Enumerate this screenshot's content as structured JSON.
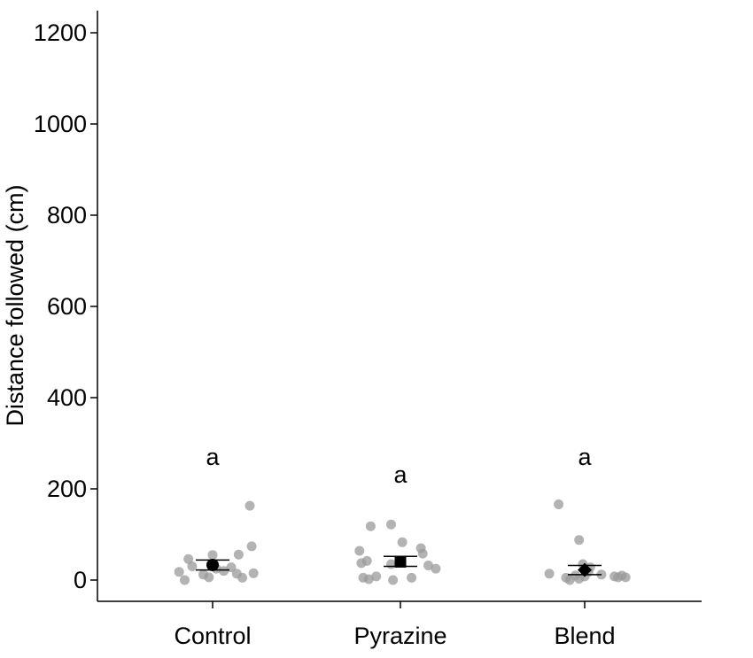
{
  "chart_data": {
    "type": "scatter",
    "title": "",
    "xlabel": "",
    "ylabel": "Distance followed (cm)",
    "ylim": [
      -50,
      1250
    ],
    "yticks": [
      0,
      200,
      400,
      600,
      800,
      1000,
      1200
    ],
    "categories": [
      "Control",
      "Pyrazine",
      "Blend"
    ],
    "grid": false,
    "point_color": "#9a9a9a",
    "mean_color": "#000000",
    "groups": [
      {
        "category": "Control",
        "marker": "circle",
        "mean": 33,
        "error": [
          22,
          44
        ],
        "significance": "a",
        "points": [
          {
            "dx": -0.18,
            "y": 18
          },
          {
            "dx": -0.15,
            "y": 0
          },
          {
            "dx": -0.13,
            "y": 46
          },
          {
            "dx": -0.11,
            "y": 30
          },
          {
            "dx": -0.05,
            "y": 12
          },
          {
            "dx": -0.02,
            "y": 6
          },
          {
            "dx": 0.0,
            "y": 55
          },
          {
            "dx": 0.02,
            "y": 25
          },
          {
            "dx": 0.06,
            "y": 20
          },
          {
            "dx": 0.1,
            "y": 28
          },
          {
            "dx": 0.13,
            "y": 14
          },
          {
            "dx": 0.14,
            "y": 56
          },
          {
            "dx": 0.16,
            "y": 5
          },
          {
            "dx": 0.2,
            "y": 163
          },
          {
            "dx": 0.21,
            "y": 74
          },
          {
            "dx": 0.22,
            "y": 15
          }
        ]
      },
      {
        "category": "Pyrazine",
        "marker": "square",
        "mean": 40,
        "error": [
          30,
          52
        ],
        "significance": "a",
        "points": [
          {
            "dx": -0.22,
            "y": 64
          },
          {
            "dx": -0.21,
            "y": 37
          },
          {
            "dx": -0.2,
            "y": 5
          },
          {
            "dx": -0.18,
            "y": 42
          },
          {
            "dx": -0.17,
            "y": 2
          },
          {
            "dx": -0.16,
            "y": 118
          },
          {
            "dx": -0.13,
            "y": 8
          },
          {
            "dx": -0.04,
            "y": 0
          },
          {
            "dx": -0.05,
            "y": 35
          },
          {
            "dx": -0.05,
            "y": 122
          },
          {
            "dx": 0.01,
            "y": 83
          },
          {
            "dx": 0.06,
            "y": 5
          },
          {
            "dx": 0.11,
            "y": 70
          },
          {
            "dx": 0.12,
            "y": 58
          },
          {
            "dx": 0.15,
            "y": 32
          },
          {
            "dx": 0.19,
            "y": 25
          }
        ]
      },
      {
        "category": "Blend",
        "marker": "diamond",
        "mean": 22,
        "error": [
          12,
          32
        ],
        "significance": "a",
        "points": [
          {
            "dx": -0.19,
            "y": 14
          },
          {
            "dx": -0.14,
            "y": 166
          },
          {
            "dx": -0.1,
            "y": 5
          },
          {
            "dx": -0.08,
            "y": 0
          },
          {
            "dx": -0.05,
            "y": 10
          },
          {
            "dx": -0.03,
            "y": 3
          },
          {
            "dx": -0.03,
            "y": 88
          },
          {
            "dx": -0.01,
            "y": 35
          },
          {
            "dx": 0.0,
            "y": 8
          },
          {
            "dx": 0.02,
            "y": 18
          },
          {
            "dx": 0.03,
            "y": 28
          },
          {
            "dx": 0.09,
            "y": 12
          },
          {
            "dx": 0.16,
            "y": 8
          },
          {
            "dx": 0.18,
            "y": 6
          },
          {
            "dx": 0.2,
            "y": 10
          },
          {
            "dx": 0.22,
            "y": 6
          }
        ]
      }
    ]
  }
}
